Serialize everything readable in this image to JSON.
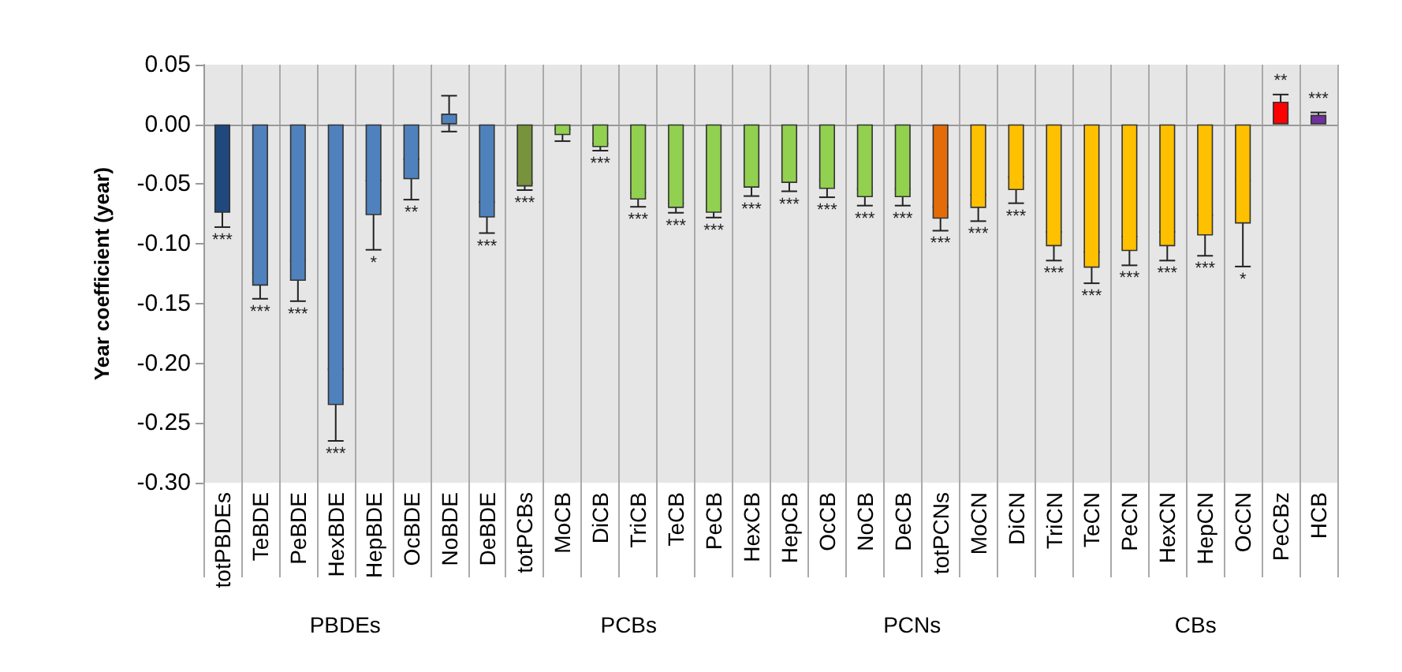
{
  "chart_data": {
    "type": "bar",
    "ylabel": "Year coefficient (year)",
    "categories": [
      "totPBDEs",
      "TeBDE",
      "PeBDE",
      "HexBDE",
      "HepBDE",
      "OcBDE",
      "NoBDE",
      "DeBDE",
      "totPCBs",
      "MoCB",
      "DiCB",
      "TriCB",
      "TeCB",
      "PeCB",
      "HexCB",
      "HepCB",
      "OcCB",
      "NoCB",
      "DeCB",
      "totPCNs",
      "MoCN",
      "DiCN",
      "TriCN",
      "TeCN",
      "PeCN",
      "HexCN",
      "HepCN",
      "OcCN",
      "PeCBz",
      "HCB"
    ],
    "values": [
      -0.074,
      -0.135,
      -0.131,
      -0.235,
      -0.076,
      -0.046,
      0.009,
      -0.078,
      -0.052,
      -0.009,
      -0.019,
      -0.063,
      -0.07,
      -0.074,
      -0.053,
      -0.049,
      -0.054,
      -0.061,
      -0.061,
      -0.079,
      -0.07,
      -0.055,
      -0.102,
      -0.12,
      -0.106,
      -0.102,
      -0.093,
      -0.083,
      0.019,
      0.008
    ],
    "errors": [
      0.012,
      0.011,
      0.017,
      0.03,
      0.029,
      0.017,
      0.015,
      0.013,
      0.003,
      0.005,
      0.003,
      0.006,
      0.004,
      0.004,
      0.007,
      0.007,
      0.007,
      0.007,
      0.007,
      0.01,
      0.011,
      0.011,
      0.012,
      0.013,
      0.012,
      0.012,
      0.017,
      0.036,
      0.006,
      0.002
    ],
    "value_labels": [
      "***",
      "***",
      "***",
      "***",
      "*",
      "**",
      null,
      "***",
      "***",
      null,
      "***",
      "***",
      "***",
      "***",
      "***",
      "***",
      "***",
      "***",
      "***",
      "***",
      "***",
      "***",
      "***",
      "***",
      "***",
      "***",
      "***",
      "*",
      "**",
      "***"
    ],
    "colors": [
      "#1f497d",
      "#4f81bd",
      "#4f81bd",
      "#4f81bd",
      "#4f81bd",
      "#4f81bd",
      "#4f81bd",
      "#4f81bd",
      "#77933c",
      "#92d050",
      "#92d050",
      "#92d050",
      "#92d050",
      "#92d050",
      "#92d050",
      "#92d050",
      "#92d050",
      "#92d050",
      "#92d050",
      "#e36c09",
      "#ffc000",
      "#ffc000",
      "#ffc000",
      "#ffc000",
      "#ffc000",
      "#ffc000",
      "#ffc000",
      "#ffc000",
      "#ff0000",
      "#7030a0"
    ],
    "ylim": [
      -0.3,
      0.05
    ],
    "yticks": [
      {
        "value": 0.05,
        "label": "0.05"
      },
      {
        "value": 0,
        "label": "0.00"
      },
      {
        "value": -0.05,
        "label": "-0.05"
      },
      {
        "value": -0.1,
        "label": "-0.10"
      },
      {
        "value": -0.15,
        "label": "-0.15"
      },
      {
        "value": -0.2,
        "label": "-0.20"
      },
      {
        "value": -0.25,
        "label": "-0.25"
      },
      {
        "value": -0.3,
        "label": "-0.30"
      }
    ],
    "grid": "x",
    "annotations": [
      "PBDEs",
      "PCBs",
      "PCNs",
      "CBs"
    ]
  }
}
